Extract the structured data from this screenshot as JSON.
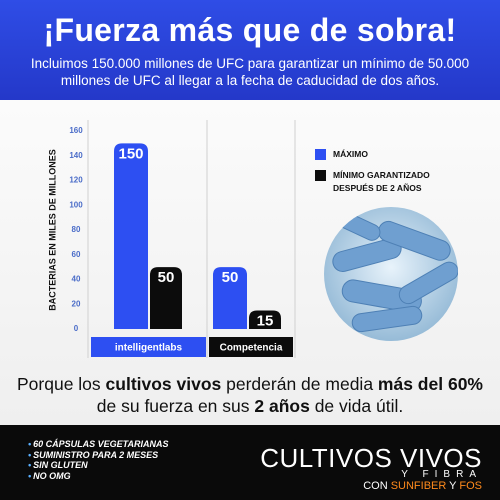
{
  "header": {
    "title": "¡Fuerza más que de sobra!",
    "description": "Incluimos 150.000 millones de UFC para garantizar un mínimo de 50.000 millones de UFC al llegar a la fecha de caducidad de dos años."
  },
  "chart_data": {
    "type": "bar",
    "y_label": "BACTERIAS EN MILES DE MILLONES",
    "categories": [
      "intelligentlabs",
      "Competencia"
    ],
    "series": [
      {
        "name": "MÁXIMO",
        "color": "#2d4ff2",
        "values": [
          150,
          50
        ]
      },
      {
        "name": "MÍNIMO GARANTIZADO DESPUÉS DE 2 AÑOS",
        "color": "#0c0c0c",
        "values": [
          50,
          15
        ]
      }
    ],
    "ylim": [
      0,
      160
    ],
    "yticks": [
      0,
      20,
      40,
      60,
      80,
      100,
      120,
      140,
      160
    ],
    "grid": false
  },
  "caption": [
    {
      "text": "Porque los ",
      "bold": false
    },
    {
      "text": "cultivos vivos",
      "bold": true
    },
    {
      "text": " perderán de media ",
      "bold": false
    },
    {
      "text": "más del 60%",
      "bold": true
    },
    {
      "text": " de su fuerza en sus ",
      "bold": false
    },
    {
      "text": "2 años",
      "bold": true
    },
    {
      "text": " de vida útil.",
      "bold": false
    }
  ],
  "footer": {
    "features": [
      "60 CÁPSULAS VEGETARIANAS",
      "SUMINISTRO PARA 2 MESES",
      "SIN GLUTEN",
      "NO OMG"
    ],
    "headline": "CULTIVOS VIVOS",
    "subheadline": "Y FIBRA",
    "tagline": [
      {
        "text": "CON ",
        "highlight": false
      },
      {
        "text": "SUNFIBER",
        "highlight": true
      },
      {
        "text": " Y ",
        "highlight": false
      },
      {
        "text": "FOS",
        "highlight": true
      }
    ]
  }
}
